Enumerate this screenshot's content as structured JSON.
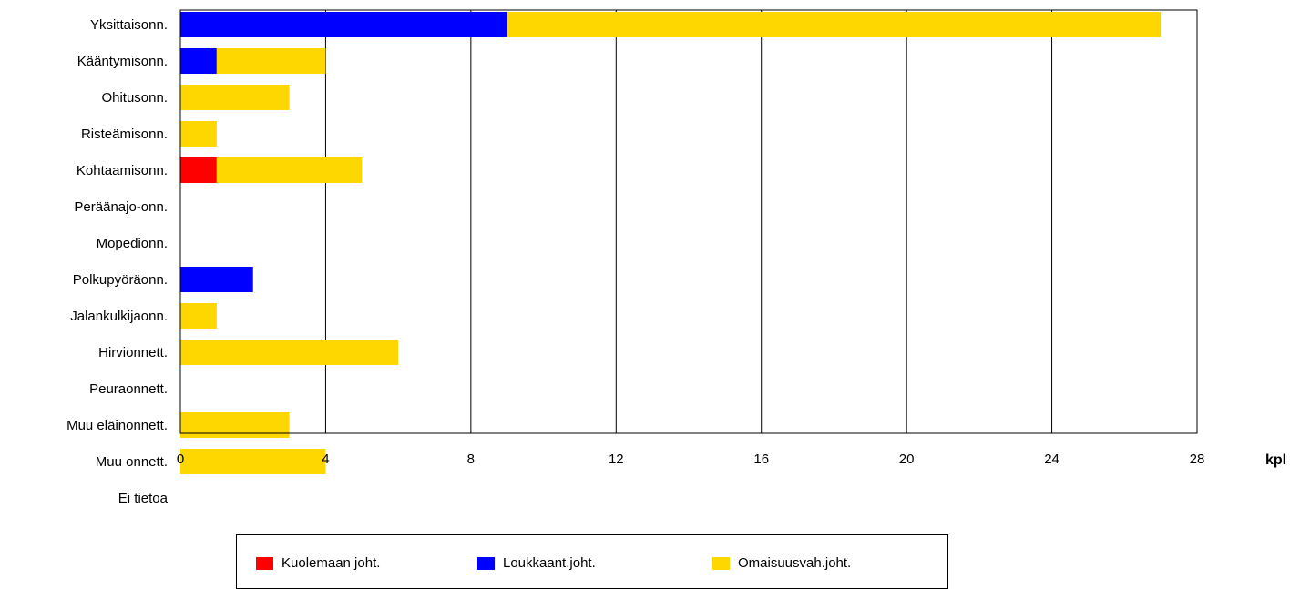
{
  "chart_data": {
    "type": "bar",
    "orientation": "horizontal",
    "stacked": true,
    "categories": [
      "Yksittaisonn.",
      "Kääntymisonn.",
      "Ohitusonn.",
      "Risteämisonn.",
      "Kohtaamisonn.",
      "Peräänajo-onn.",
      "Mopedionn.",
      "Polkupyöräonn.",
      "Jalankulkijaonn.",
      "Hirvionnett.",
      "Peuraonnett.",
      "Muu eläinonnett.",
      "Muu onnett.",
      "Ei tietoa"
    ],
    "series": [
      {
        "name": "Kuolemaan joht.",
        "color": "#ff0000",
        "values": [
          0,
          0,
          0,
          0,
          1,
          0,
          0,
          0,
          0,
          0,
          0,
          0,
          0,
          0
        ]
      },
      {
        "name": "Loukkaant.joht.",
        "color": "#0000ff",
        "values": [
          9,
          1,
          0,
          0,
          0,
          0,
          0,
          2,
          0,
          0,
          0,
          0,
          0,
          0
        ]
      },
      {
        "name": "Omaisuusvah.joht.",
        "color": "#ffd700",
        "values": [
          18,
          3,
          3,
          1,
          4,
          0,
          0,
          0,
          1,
          6,
          0,
          3,
          4,
          0
        ]
      }
    ],
    "xlim": [
      0,
      28
    ],
    "xticks": [
      0,
      4,
      8,
      12,
      16,
      20,
      24,
      28
    ],
    "xlabel": "kpl",
    "ylabel": "",
    "title": "",
    "grid": "vertical",
    "legend_position": "bottom"
  }
}
